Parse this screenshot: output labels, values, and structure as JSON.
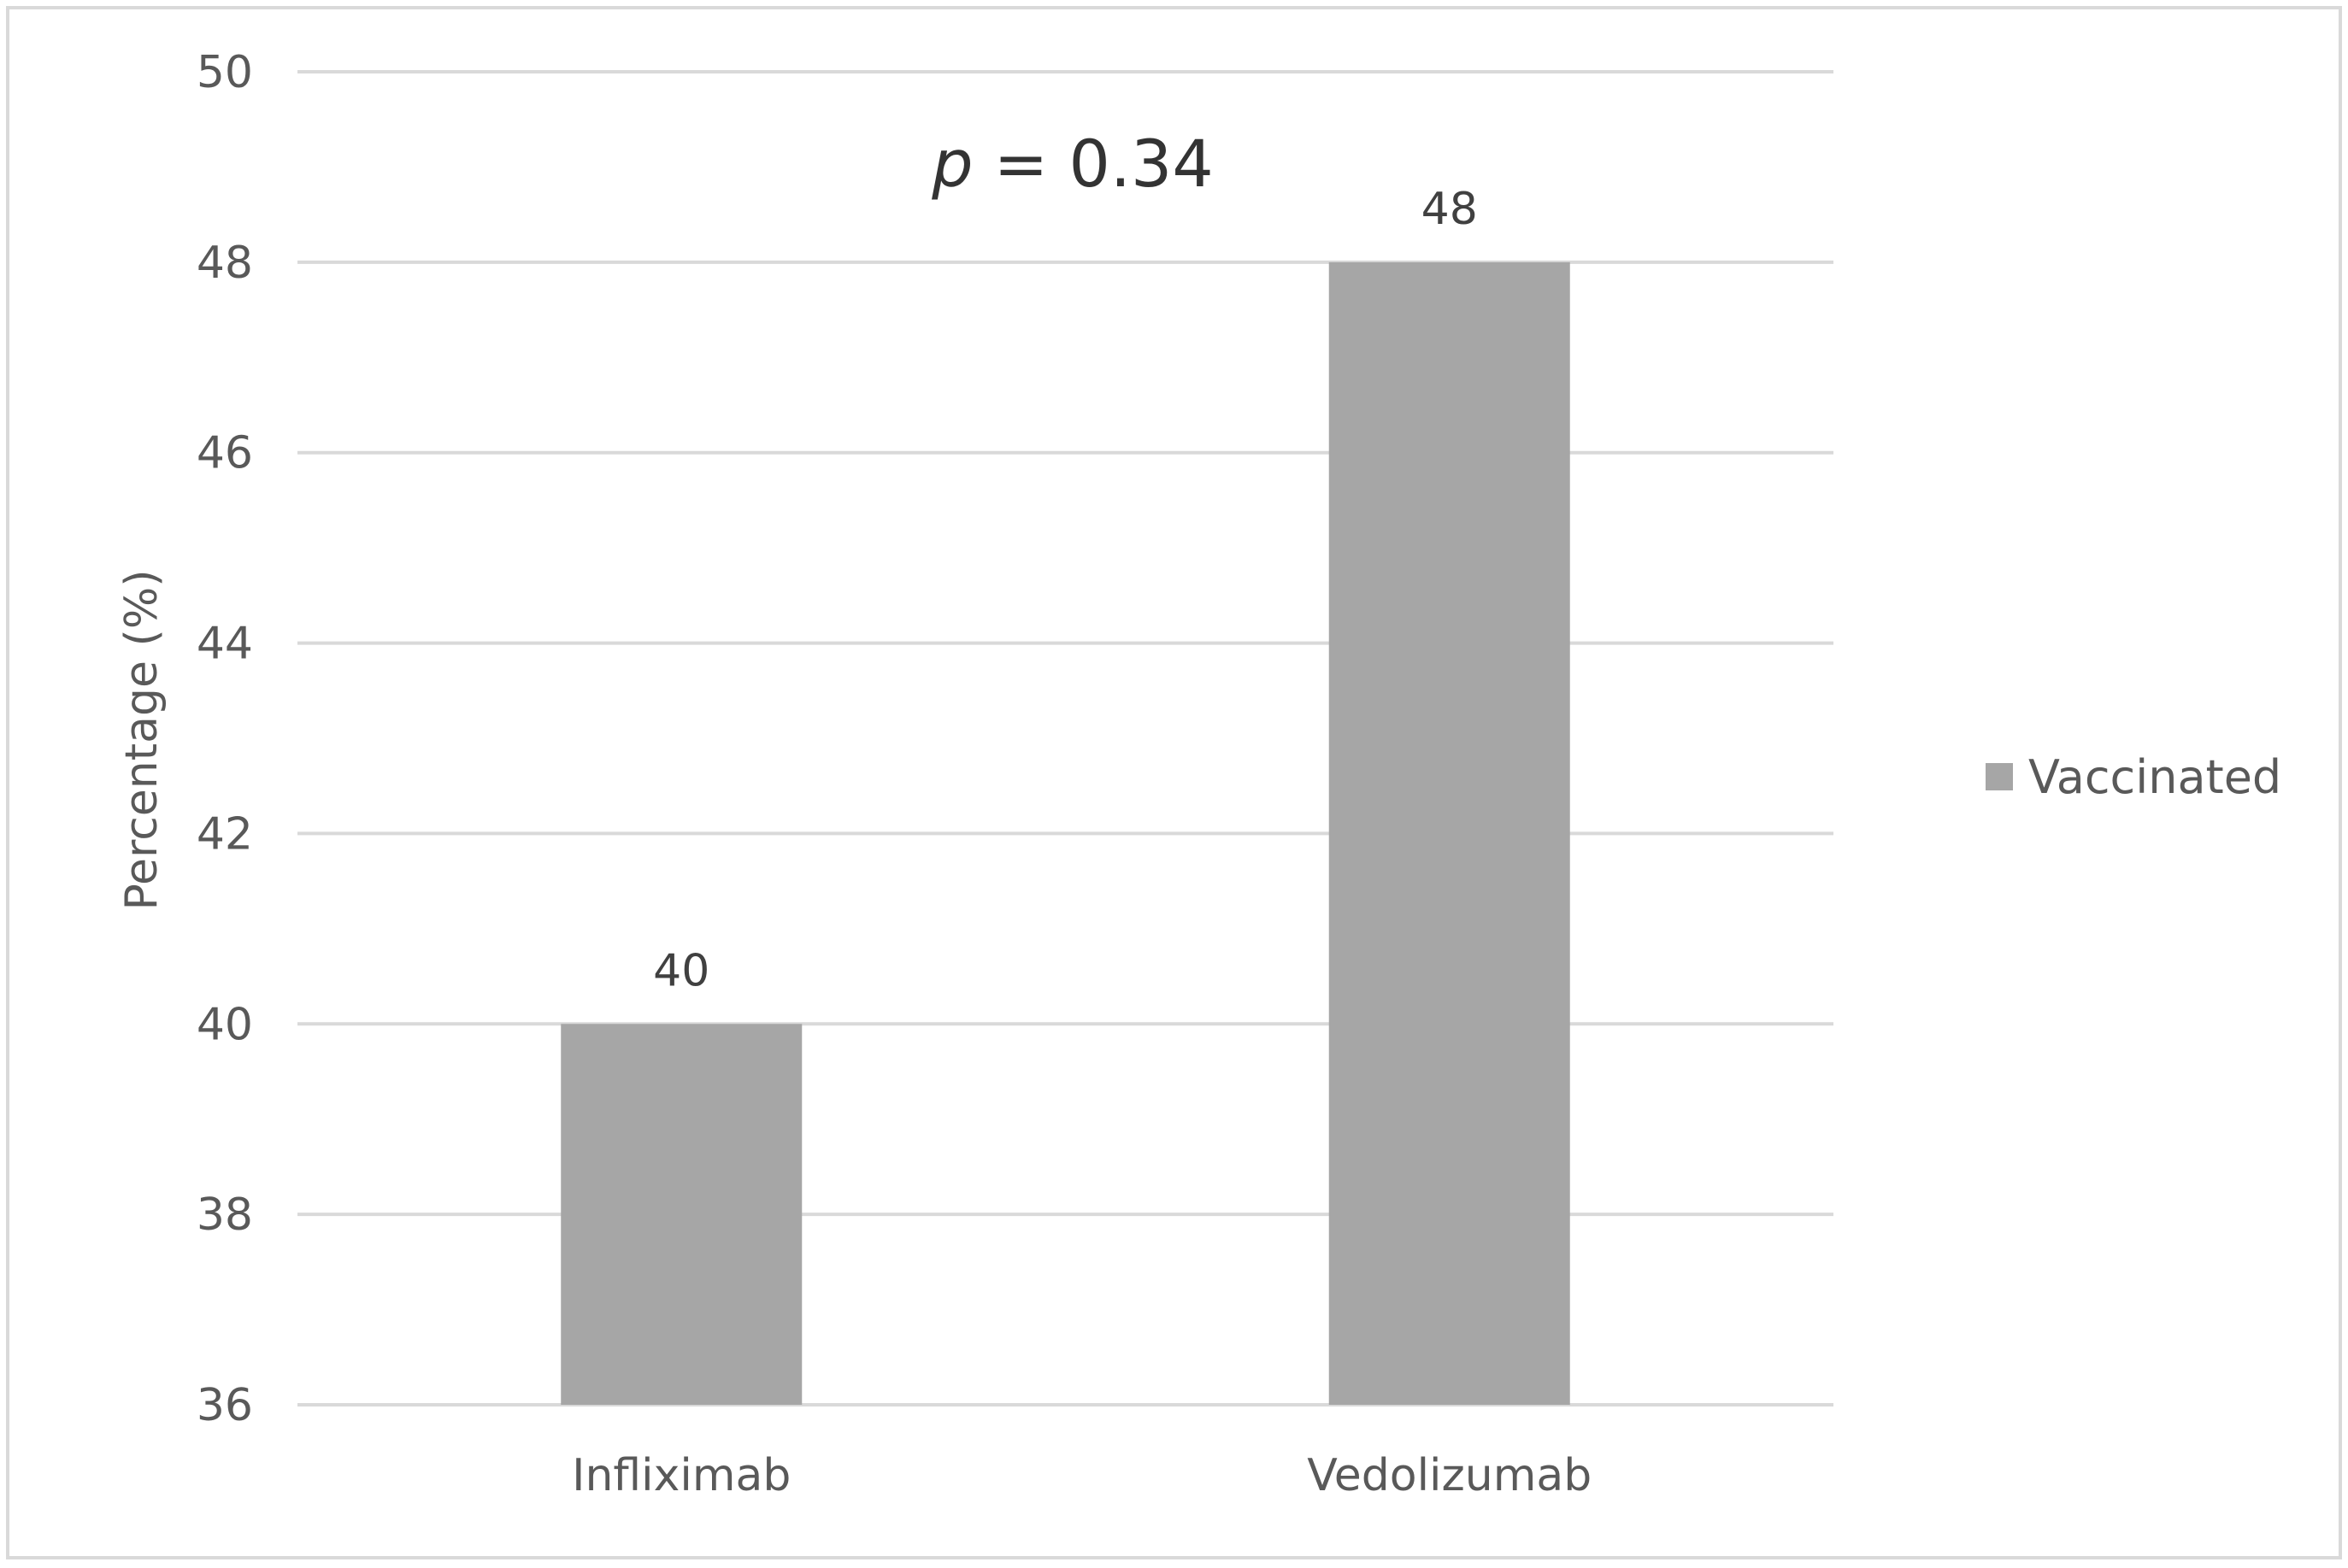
{
  "chart_data": {
    "type": "bar",
    "categories": [
      "Infliximab",
      "Vedolizumab"
    ],
    "series": [
      {
        "name": "Vaccinated",
        "values": [
          40,
          48
        ],
        "data_labels": [
          "40",
          "48"
        ],
        "color": "#a6a6a6"
      }
    ],
    "title": "",
    "xlabel": "",
    "ylabel": "Percentage (%)",
    "ylim": [
      36,
      50
    ],
    "yticks": [
      36,
      38,
      40,
      42,
      44,
      46,
      48,
      50
    ],
    "ytick_labels": [
      "36",
      "38",
      "40",
      "42",
      "44",
      "46",
      "48",
      "50"
    ],
    "grid": true,
    "legend_position": "right",
    "annotation": {
      "italic_part": "p",
      "rest": " = 0.34"
    },
    "colors": {
      "bar": "#a6a6a6",
      "grid": "#d9d9d9",
      "frame": "#d9d9d9",
      "text": "#595959"
    }
  }
}
